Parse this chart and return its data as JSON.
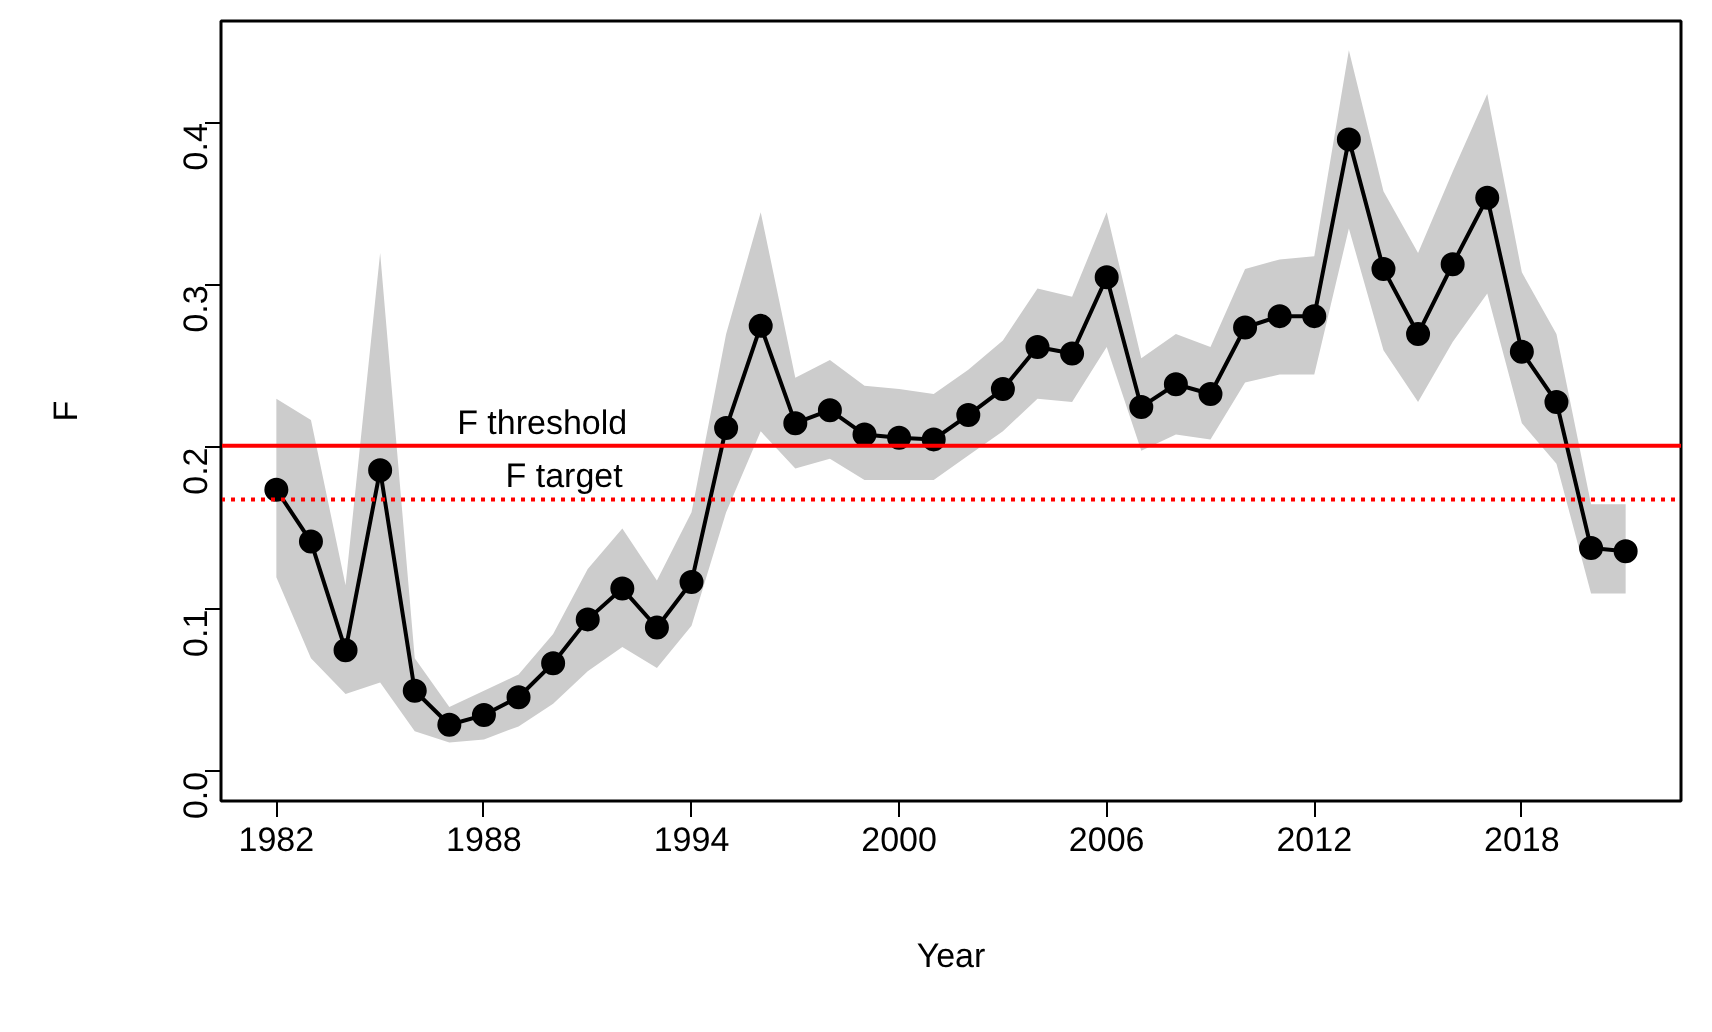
{
  "chart_data": {
    "type": "line",
    "xlabel": "Year",
    "ylabel": "F",
    "x": [
      1982,
      1983,
      1984,
      1985,
      1986,
      1987,
      1988,
      1989,
      1990,
      1991,
      1992,
      1993,
      1994,
      1995,
      1996,
      1997,
      1998,
      1999,
      2000,
      2001,
      2002,
      2003,
      2004,
      2005,
      2006,
      2007,
      2008,
      2009,
      2010,
      2011,
      2012,
      2013,
      2014,
      2015,
      2016,
      2017,
      2018,
      2019,
      2020,
      2021
    ],
    "series": [
      {
        "color": "#000000",
        "values": [
          0.174,
          0.142,
          0.075,
          0.186,
          0.05,
          0.029,
          0.035,
          0.046,
          0.067,
          0.094,
          0.113,
          0.089,
          0.117,
          0.212,
          0.275,
          0.215,
          0.223,
          0.208,
          0.206,
          0.205,
          0.22,
          0.236,
          0.262,
          0.258,
          0.305,
          0.225,
          0.239,
          0.233,
          0.274,
          0.281,
          0.281,
          0.39,
          0.31,
          0.27,
          0.313,
          0.354,
          0.259,
          0.228,
          0.138,
          0.136
        ],
        "lower": [
          0.12,
          0.07,
          0.048,
          0.055,
          0.025,
          0.018,
          0.02,
          0.028,
          0.042,
          0.062,
          0.077,
          0.064,
          0.09,
          0.16,
          0.21,
          0.187,
          0.193,
          0.18,
          0.18,
          0.18,
          0.195,
          0.21,
          0.23,
          0.228,
          0.262,
          0.198,
          0.208,
          0.205,
          0.24,
          0.245,
          0.245,
          0.335,
          0.26,
          0.228,
          0.265,
          0.295,
          0.215,
          0.19,
          0.11,
          0.11
        ],
        "upper": [
          0.23,
          0.217,
          0.115,
          0.32,
          0.07,
          0.04,
          0.05,
          0.06,
          0.085,
          0.125,
          0.15,
          0.118,
          0.16,
          0.27,
          0.345,
          0.243,
          0.254,
          0.238,
          0.236,
          0.233,
          0.248,
          0.266,
          0.298,
          0.293,
          0.345,
          0.255,
          0.27,
          0.262,
          0.31,
          0.316,
          0.318,
          0.445,
          0.358,
          0.32,
          0.37,
          0.418,
          0.308,
          0.27,
          0.165,
          0.165
        ]
      }
    ],
    "ref_lines": [
      {
        "axis": "y",
        "value": 0.201,
        "label": "F threshold",
        "color": "#ff0000",
        "line_style": "solid"
      },
      {
        "axis": "y",
        "value": 0.168,
        "label": "F target",
        "color": "#ff0000",
        "line_style": "dotted"
      }
    ],
    "xlim": [
      1980.4,
      2022.6
    ],
    "ylim": [
      -0.018,
      0.463
    ],
    "xticks": [
      1982,
      1988,
      1994,
      2000,
      2006,
      2012,
      2018
    ],
    "yticks": [
      {
        "value": 0,
        "label": "0.0"
      },
      0.1,
      0.2,
      0.3,
      0.4
    ],
    "grid": false,
    "marker": "circle",
    "line_style": "solid"
  }
}
